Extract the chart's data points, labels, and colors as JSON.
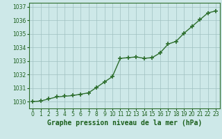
{
  "title": "Graphe pression niveau de la mer (hPa)",
  "x_values": [
    0,
    1,
    2,
    3,
    4,
    5,
    6,
    7,
    8,
    9,
    10,
    11,
    12,
    13,
    14,
    15,
    16,
    17,
    18,
    19,
    20,
    21,
    22,
    23
  ],
  "y_values": [
    1030.0,
    1030.05,
    1030.2,
    1030.35,
    1030.4,
    1030.45,
    1030.55,
    1030.65,
    1031.05,
    1031.45,
    1031.85,
    1033.2,
    1033.25,
    1033.3,
    1033.2,
    1033.25,
    1033.6,
    1034.25,
    1034.45,
    1035.05,
    1035.55,
    1036.05,
    1036.55,
    1036.7
  ],
  "ylim": [
    1029.5,
    1037.3
  ],
  "yticks": [
    1030,
    1031,
    1032,
    1033,
    1034,
    1035,
    1036,
    1037
  ],
  "xticks": [
    0,
    1,
    2,
    3,
    4,
    5,
    6,
    7,
    8,
    9,
    10,
    11,
    12,
    13,
    14,
    15,
    16,
    17,
    18,
    19,
    20,
    21,
    22,
    23
  ],
  "line_color": "#2d6e2d",
  "marker": "+",
  "marker_size": 4,
  "marker_lw": 1.2,
  "line_width": 1.0,
  "bg_color": "#cde8e8",
  "grid_color": "#a0c0c0",
  "title_color": "#1a5e1a",
  "tick_color": "#1a5e1a",
  "title_fontsize": 7.0,
  "tick_fontsize": 5.5,
  "border_color": "#2d6e2d"
}
